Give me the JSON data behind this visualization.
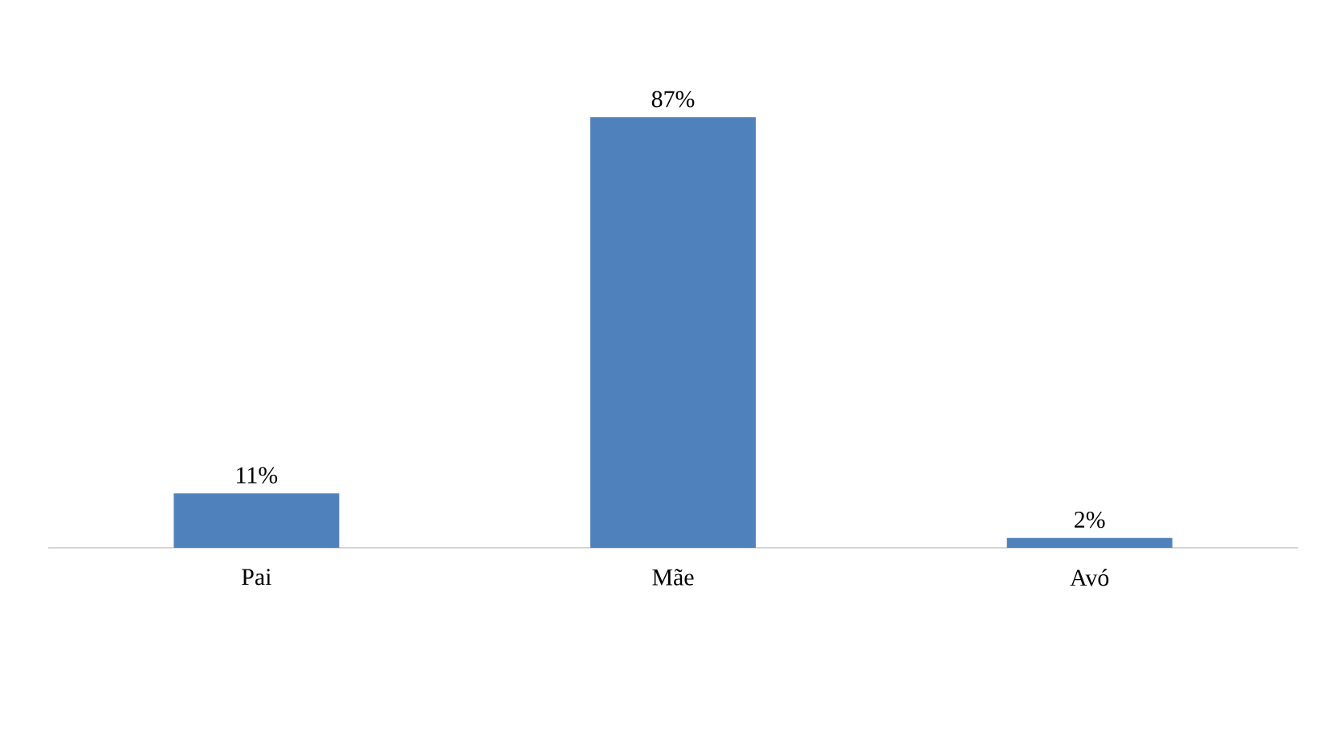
{
  "chart_data": {
    "type": "bar",
    "categories": [
      "Pai",
      "Mãe",
      "Avó"
    ],
    "values": [
      11,
      87,
      2
    ],
    "value_labels": [
      "11%",
      "87%",
      "2%"
    ],
    "color": "#4f81bd"
  }
}
